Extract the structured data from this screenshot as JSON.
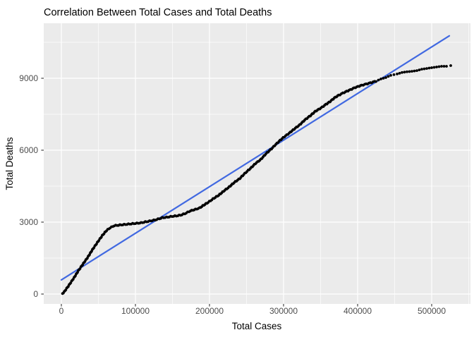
{
  "figure": {
    "background": "#ffffff"
  },
  "chart_data": {
    "type": "scatter",
    "title": "Correlation Between Total Cases and Total Deaths",
    "xlabel": "Total Cases",
    "ylabel": "Total Deaths",
    "legend": "none",
    "grid": true,
    "xlim": [
      -23810,
      552381
    ],
    "ylim": [
      -412,
      11294
    ],
    "x_ticks": [
      0,
      100000,
      200000,
      300000,
      400000,
      500000
    ],
    "x_tick_labels": [
      "0",
      "100000",
      "200000",
      "300000",
      "400000",
      "500000"
    ],
    "y_ticks": [
      0,
      3000,
      6000,
      9000
    ],
    "y_tick_labels": [
      "0",
      "3000",
      "6000",
      "9000"
    ],
    "x_minor_ticks": [
      50000,
      150000,
      250000,
      350000,
      450000,
      550000
    ],
    "y_minor_ticks": [
      1500,
      4500,
      7500,
      10500
    ],
    "colors": {
      "panel_bg": "#EBEBEB",
      "grid": "#FFFFFF",
      "tick_mark": "#333333",
      "tick_label": "#4D4D4D",
      "title_text": "#000000",
      "axis_title_text": "#000000",
      "point": "#000000",
      "fit_line": "#4169E1"
    },
    "series": [
      {
        "name": "linear-fit",
        "type": "line",
        "color": "#4169E1",
        "points": [
          [
            0,
            590
          ],
          [
            523800,
            10770
          ]
        ]
      },
      {
        "name": "observations",
        "type": "scatter",
        "color": "#000000",
        "sparse_from_x": 420000,
        "points": [
          [
            1500,
            20
          ],
          [
            3800,
            90
          ],
          [
            10500,
            380
          ],
          [
            17100,
            680
          ],
          [
            22900,
            970
          ],
          [
            27600,
            1180
          ],
          [
            36200,
            1560
          ],
          [
            41900,
            1850
          ],
          [
            48600,
            2150
          ],
          [
            55200,
            2440
          ],
          [
            61000,
            2650
          ],
          [
            65700,
            2760
          ],
          [
            71400,
            2850
          ],
          [
            79000,
            2880
          ],
          [
            88600,
            2910
          ],
          [
            98100,
            2940
          ],
          [
            107600,
            2970
          ],
          [
            117100,
            3030
          ],
          [
            126700,
            3090
          ],
          [
            136200,
            3180
          ],
          [
            143800,
            3210
          ],
          [
            149500,
            3240
          ],
          [
            155200,
            3260
          ],
          [
            161000,
            3290
          ],
          [
            166700,
            3350
          ],
          [
            174300,
            3470
          ],
          [
            181000,
            3530
          ],
          [
            186700,
            3590
          ],
          [
            192400,
            3710
          ],
          [
            198100,
            3820
          ],
          [
            204800,
            3970
          ],
          [
            212400,
            4120
          ],
          [
            219000,
            4290
          ],
          [
            226700,
            4470
          ],
          [
            233300,
            4650
          ],
          [
            241000,
            4820
          ],
          [
            247600,
            5030
          ],
          [
            255200,
            5240
          ],
          [
            261900,
            5440
          ],
          [
            269500,
            5620
          ],
          [
            276200,
            5850
          ],
          [
            283800,
            6060
          ],
          [
            289500,
            6240
          ],
          [
            295200,
            6410
          ],
          [
            301000,
            6560
          ],
          [
            307600,
            6710
          ],
          [
            314300,
            6880
          ],
          [
            321900,
            7060
          ],
          [
            328600,
            7260
          ],
          [
            336200,
            7440
          ],
          [
            342900,
            7620
          ],
          [
            350500,
            7760
          ],
          [
            357100,
            7910
          ],
          [
            362900,
            8030
          ],
          [
            368600,
            8180
          ],
          [
            374300,
            8290
          ],
          [
            381900,
            8410
          ],
          [
            388600,
            8500
          ],
          [
            397100,
            8620
          ],
          [
            405700,
            8710
          ],
          [
            415200,
            8790
          ],
          [
            424800,
            8880
          ],
          [
            431400,
            8970
          ],
          [
            438100,
            9030
          ],
          [
            444800,
            9120
          ],
          [
            453300,
            9180
          ],
          [
            460000,
            9240
          ],
          [
            466700,
            9270
          ],
          [
            473300,
            9290
          ],
          [
            480000,
            9320
          ],
          [
            486700,
            9380
          ],
          [
            493300,
            9410
          ],
          [
            500000,
            9440
          ],
          [
            506700,
            9470
          ],
          [
            513300,
            9500
          ],
          [
            520000,
            9500
          ],
          [
            525700,
            9530
          ]
        ]
      }
    ]
  }
}
